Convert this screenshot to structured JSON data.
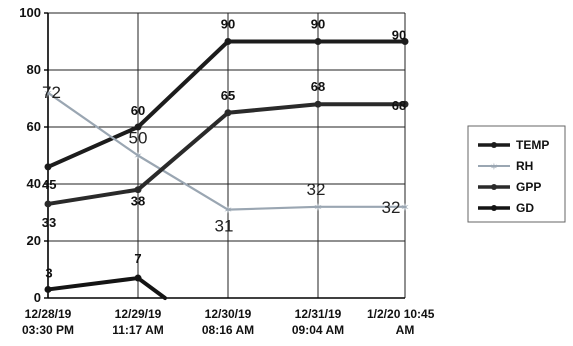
{
  "chart_data": {
    "type": "line",
    "title": "",
    "xlabel": "",
    "ylabel": "",
    "ylim": [
      0,
      100
    ],
    "yticks": [
      0,
      20,
      40,
      60,
      80,
      100
    ],
    "grid": true,
    "legend_position": "right",
    "categories": [
      [
        "12/28/19",
        "03:30 PM"
      ],
      [
        "12/29/19",
        "11:17 AM"
      ],
      [
        "12/30/19",
        "08:16 AM"
      ],
      [
        "12/31/19",
        "09:04 AM"
      ],
      [
        "1/2/20 10:45",
        "AM"
      ]
    ],
    "series": [
      {
        "name": "TEMP",
        "color": "#1c1c1c",
        "marker": "circle",
        "values": [
          46,
          60,
          90,
          90,
          90
        ],
        "labels": [
          "",
          "60",
          "90",
          "90",
          "90"
        ]
      },
      {
        "name": "RH",
        "color": "#9aa6b2",
        "marker": "star",
        "values": [
          72,
          50,
          31,
          32,
          32
        ],
        "labels": [
          "72",
          "50",
          "31",
          "32",
          "32"
        ]
      },
      {
        "name": "GPP",
        "color": "#2a2a2a",
        "marker": "circle",
        "values": [
          33,
          38,
          65,
          68,
          68
        ],
        "labels": [
          "33",
          "38",
          "65",
          "68",
          "68"
        ]
      },
      {
        "name": "GD",
        "color": "#141414",
        "marker": "circle",
        "values": [
          3,
          7,
          null,
          null,
          null
        ],
        "labels": [
          "3",
          "7",
          "",
          "",
          ""
        ],
        "tail_to_x": 1.3
      }
    ],
    "extra_label": "45"
  }
}
